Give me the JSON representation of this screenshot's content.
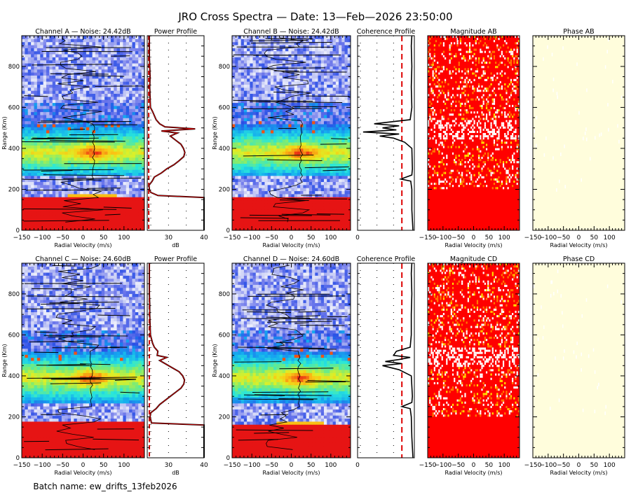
{
  "figure": {
    "title": "JRO Cross Spectra — Date: 13—Feb—2026 23:50:00",
    "footer": "Batch name: ew_drifts_13feb2026"
  },
  "axes_labels": {
    "range": "Range (Km)",
    "velocity": "Radial Velocity (m/s)",
    "db": "dB"
  },
  "chart_data": [
    {
      "type": "heatmap",
      "title": "Channel A — Noise: 24.42dB",
      "xlabel": "Radial Velocity (m/s)",
      "ylabel": "Range (Km)",
      "xlim": [
        -150,
        150
      ],
      "ylim": [
        0,
        950
      ],
      "xticks": [
        "−150",
        "−100",
        "−50",
        "0",
        "50",
        "100"
      ],
      "yticks": [
        "0",
        "200",
        "400",
        "600",
        "800"
      ],
      "noise_db": 24.42,
      "features": {
        "saturated_band_km": [
          0,
          170
        ],
        "echo_layer_km": [
          260,
          520
        ],
        "echo_peak_km": 380,
        "echo_peak_velocity": 25
      }
    },
    {
      "type": "line",
      "title": "Power Profile",
      "xlabel": "dB",
      "xlim": [
        24,
        40
      ],
      "xticks": [
        "30",
        "40"
      ],
      "ylim": [
        0,
        950
      ],
      "noise_level_db": 24.42,
      "range_km": [
        0,
        40,
        80,
        120,
        160,
        170,
        185,
        200,
        220,
        240,
        260,
        280,
        300,
        320,
        340,
        360,
        380,
        400,
        420,
        440,
        460,
        475,
        485,
        495,
        505,
        520,
        540,
        560,
        580,
        600,
        650,
        700,
        750,
        800,
        850,
        900,
        950
      ],
      "power_db": [
        40,
        40,
        40,
        40,
        40,
        27,
        25,
        24.6,
        24.5,
        25.4,
        26,
        28,
        29.5,
        31.5,
        33,
        34.3,
        34.6,
        34.2,
        33.5,
        32,
        30.5,
        32.5,
        28,
        37.5,
        29,
        27.5,
        26.5,
        26,
        25.5,
        24.9,
        24.8,
        24.7,
        24.8,
        24.7,
        24.6,
        24.6,
        24.6
      ]
    },
    {
      "type": "heatmap",
      "title": "Channel B — Noise: 24.42dB",
      "xlabel": "Radial Velocity (m/s)",
      "ylabel": "Range (Km)",
      "xlim": [
        -150,
        150
      ],
      "ylim": [
        0,
        950
      ],
      "xticks": [
        "−150",
        "−100",
        "−50",
        "0",
        "50",
        "100"
      ],
      "yticks": [
        "0",
        "200",
        "400",
        "600",
        "800"
      ],
      "noise_db": 24.42,
      "features": {
        "saturated_band_km": [
          0,
          160
        ],
        "echo_layer_km": [
          270,
          520
        ],
        "echo_peak_km": 380,
        "echo_peak_velocity": 25
      }
    },
    {
      "type": "line",
      "title": "Coherence Profile",
      "xlim": [
        0,
        1
      ],
      "xticks": [
        "0"
      ],
      "ylim": [
        0,
        950
      ],
      "threshold": 0.8,
      "range_km": [
        0,
        100,
        200,
        240,
        250,
        270,
        300,
        400,
        430,
        450,
        460,
        470,
        480,
        490,
        500,
        510,
        520,
        540,
        600,
        700,
        800,
        900,
        950
      ],
      "coherence": [
        1.0,
        0.98,
        0.98,
        0.96,
        0.78,
        0.98,
        0.99,
        0.98,
        0.85,
        0.65,
        0.4,
        0.75,
        0.1,
        0.7,
        0.45,
        0.75,
        0.3,
        0.95,
        0.98,
        0.97,
        0.98,
        0.97,
        0.98
      ]
    },
    {
      "type": "heatmap",
      "title": "Magnitude AB",
      "xlabel": "Radial Velocity (m/s)",
      "xlim": [
        -150,
        150
      ],
      "ylim": [
        0,
        950
      ],
      "xticks": [
        "−150",
        "−100",
        "−50",
        "0",
        "50",
        "100"
      ],
      "features": {
        "high_coherence_band_km": [
          440,
          540
        ]
      }
    },
    {
      "type": "heatmap",
      "title": "Phase AB",
      "xlabel": "Radial Velocity (m/s)",
      "xlim": [
        -150,
        150
      ],
      "ylim": [
        0,
        950
      ],
      "xticks": [
        "−150",
        "−100",
        "−50",
        "0",
        "50",
        "100"
      ]
    },
    {
      "type": "heatmap",
      "title": "Channel C — Noise: 24.60dB",
      "xlabel": "Radial Velocity (m/s)",
      "ylabel": "Range (Km)",
      "xlim": [
        -150,
        150
      ],
      "ylim": [
        0,
        950
      ],
      "xticks": [
        "−150",
        "−100",
        "−50",
        "0",
        "50",
        "100"
      ],
      "yticks": [
        "0",
        "200",
        "400",
        "600",
        "800"
      ],
      "noise_db": 24.6,
      "features": {
        "saturated_band_km": [
          0,
          175
        ],
        "echo_layer_km": [
          260,
          520
        ],
        "echo_peak_km": 390,
        "echo_peak_velocity": 20
      }
    },
    {
      "type": "line",
      "title": "Power Profile",
      "xlabel": "dB",
      "xlim": [
        24,
        40
      ],
      "xticks": [
        "30",
        "40"
      ],
      "ylim": [
        0,
        950
      ],
      "noise_level_db": 24.6,
      "range_km": [
        0,
        40,
        80,
        120,
        160,
        170,
        185,
        200,
        220,
        240,
        260,
        280,
        300,
        320,
        340,
        360,
        380,
        400,
        420,
        440,
        460,
        475,
        490,
        500,
        520,
        540,
        560,
        580,
        600,
        650,
        700,
        750,
        800,
        850,
        900,
        950
      ],
      "power_db": [
        40,
        40,
        40,
        40,
        40,
        25.2,
        25,
        24.8,
        25,
        26.5,
        27.5,
        29,
        30.5,
        32,
        33.5,
        34.3,
        34.5,
        34,
        33,
        31,
        29,
        27.5,
        29.5,
        26.8,
        27,
        26,
        25.5,
        25.2,
        24.9,
        24.8,
        24.7,
        24.7,
        24.6,
        24.6,
        24.6,
        24.6
      ]
    },
    {
      "type": "heatmap",
      "title": "Channel D — Noise: 24.60dB",
      "xlabel": "Radial Velocity (m/s)",
      "ylabel": "Range (Km)",
      "xlim": [
        -150,
        150
      ],
      "ylim": [
        0,
        950
      ],
      "xticks": [
        "−150",
        "−100",
        "−50",
        "0",
        "50",
        "100"
      ],
      "yticks": [
        "0",
        "200",
        "400",
        "600",
        "800"
      ],
      "noise_db": 24.6,
      "features": {
        "saturated_band_km": [
          0,
          170
        ],
        "echo_layer_km": [
          270,
          520
        ],
        "echo_peak_km": 390,
        "echo_peak_velocity": 20
      }
    },
    {
      "type": "line",
      "title": "Coherence Profile",
      "xlim": [
        0,
        1
      ],
      "xticks": [
        "0"
      ],
      "ylim": [
        0,
        950
      ],
      "threshold": 0.8,
      "range_km": [
        0,
        100,
        200,
        240,
        250,
        270,
        300,
        400,
        430,
        450,
        460,
        470,
        480,
        490,
        500,
        520,
        540,
        600,
        700,
        800,
        900,
        950
      ],
      "coherence": [
        1.0,
        0.98,
        0.97,
        0.95,
        0.8,
        0.98,
        0.99,
        0.97,
        0.75,
        0.45,
        0.8,
        0.5,
        0.75,
        0.95,
        0.65,
        0.7,
        0.95,
        0.97,
        0.97,
        0.98,
        0.97,
        0.98
      ]
    },
    {
      "type": "heatmap",
      "title": "Magnitude CD",
      "xlabel": "Radial Velocity (m/s)",
      "xlim": [
        -150,
        150
      ],
      "ylim": [
        0,
        950
      ],
      "xticks": [
        "−150",
        "−100",
        "−50",
        "0",
        "50",
        "100"
      ],
      "features": {
        "high_coherence_band_km": [
          440,
          540
        ]
      }
    },
    {
      "type": "heatmap",
      "title": "Phase CD",
      "xlabel": "Radial Velocity (m/s)",
      "xlim": [
        -150,
        150
      ],
      "ylim": [
        0,
        950
      ],
      "xticks": [
        "−150",
        "−100",
        "−50",
        "0",
        "50",
        "100"
      ]
    }
  ],
  "colors": {
    "saturated": "#ff0000",
    "phase_bg": "#fffddc",
    "threshold_line": "#dd0000",
    "noise_line": "#cc0000",
    "profile_line": "#000000"
  }
}
